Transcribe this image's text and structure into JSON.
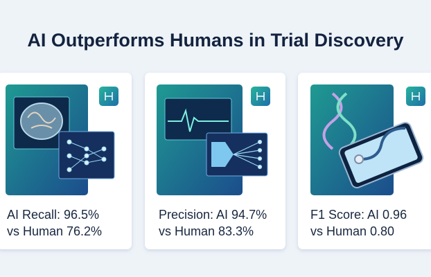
{
  "header": {
    "title": "AI Outperforms Humans in Trial Discovery"
  },
  "cards": [
    {
      "line1": "AI Recall: 96.5%",
      "line2": "vs Human 76.2%"
    },
    {
      "line1": "Precision: AI 94.7%",
      "line2": "vs Human 83.3%"
    },
    {
      "line1": "F1 Score: AI 0.96",
      "line2": "vs Human 0.80"
    }
  ]
}
